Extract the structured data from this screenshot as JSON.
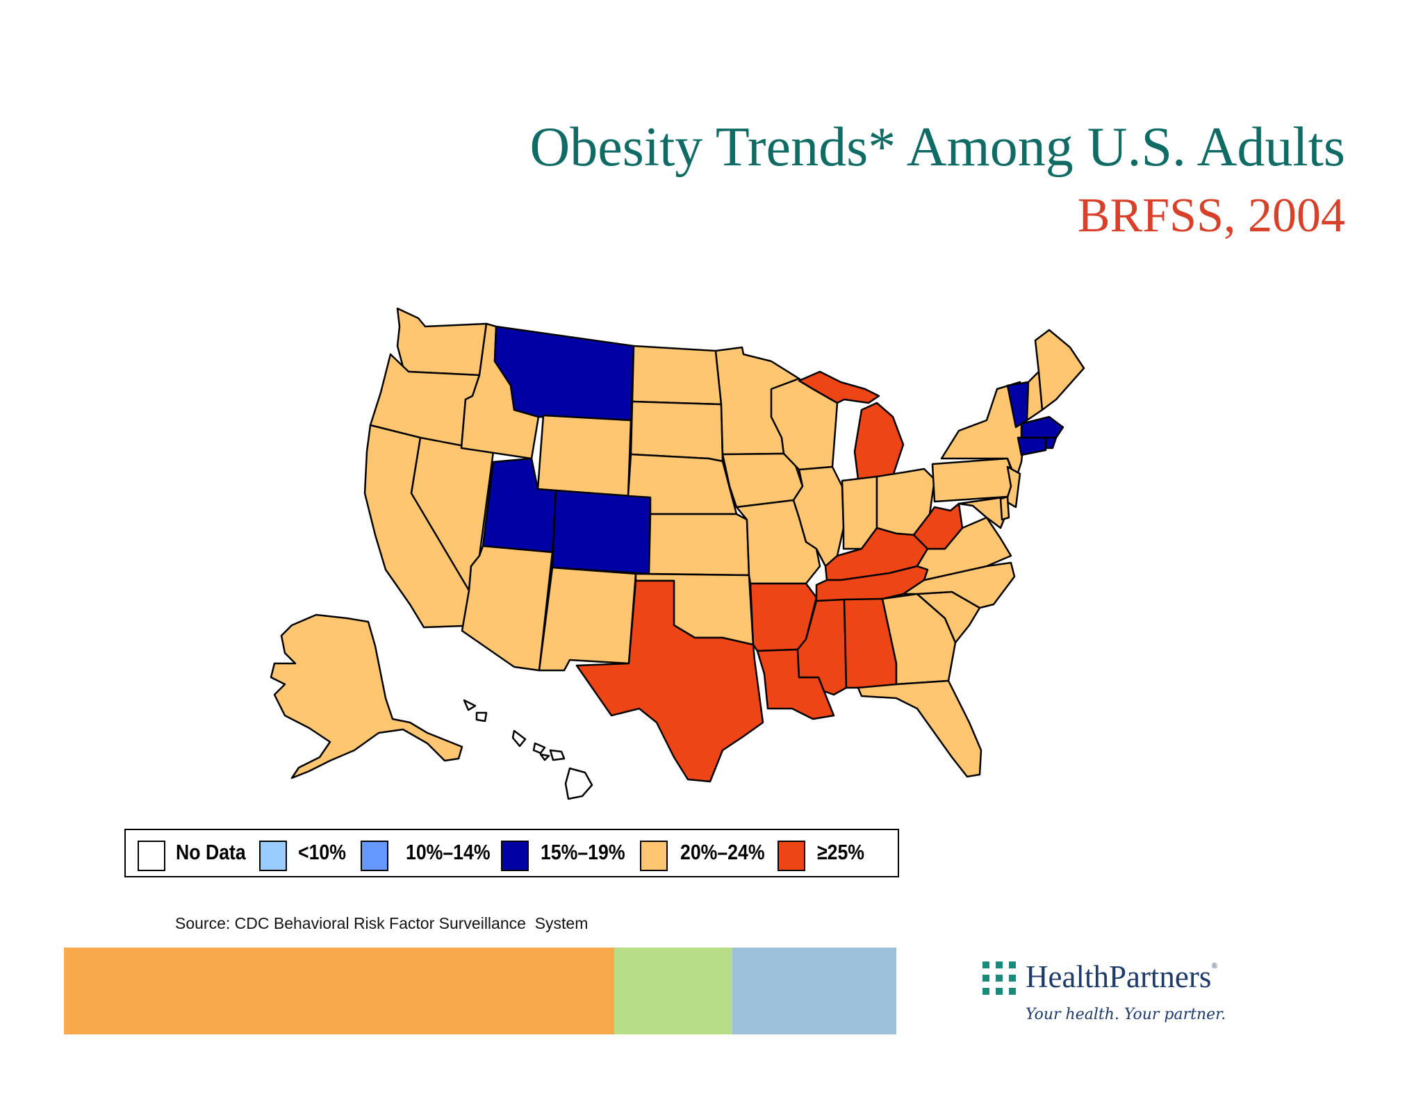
{
  "title": {
    "main": "Obesity Trends* Among U.S. Adults",
    "sub": "BRFSS, 2004"
  },
  "colors": {
    "title_main": "#0f6b64",
    "title_sub": "#d9402a",
    "no_data": "#ffffff",
    "lt10": "#99ccff",
    "p10_14": "#6699ff",
    "p15_19": "#0000a5",
    "p20_24": "#ffc672",
    "ge25": "#ee4517"
  },
  "legend": [
    {
      "key": "no_data",
      "label": "No Data"
    },
    {
      "key": "lt10",
      "label": "<10%"
    },
    {
      "key": "p10_14",
      "label": "10%–14%"
    },
    {
      "key": "p15_19",
      "label": "15%–19%"
    },
    {
      "key": "p20_24",
      "label": "20%–24%"
    },
    {
      "key": "ge25",
      "label": "≥25%"
    }
  ],
  "states": {
    "WA": "p20_24",
    "OR": "p20_24",
    "CA": "p20_24",
    "ID": "p20_24",
    "NV": "p20_24",
    "MT": "p15_19",
    "WY": "p20_24",
    "UT": "p15_19",
    "CO": "p15_19",
    "AZ": "p20_24",
    "NM": "p20_24",
    "ND": "p20_24",
    "SD": "p20_24",
    "NE": "p20_24",
    "KS": "p20_24",
    "OK": "p20_24",
    "TX": "ge25",
    "MN": "p20_24",
    "IA": "p20_24",
    "MO": "p20_24",
    "AR": "ge25",
    "LA": "ge25",
    "WI": "p20_24",
    "IL": "p20_24",
    "MI": "ge25",
    "IN": "p20_24",
    "OH": "p20_24",
    "KY": "ge25",
    "TN": "ge25",
    "MS": "ge25",
    "AL": "ge25",
    "GA": "p20_24",
    "FL": "p20_24",
    "SC": "p20_24",
    "NC": "p20_24",
    "VA": "p20_24",
    "WV": "ge25",
    "PA": "p20_24",
    "NY": "p20_24",
    "ME": "p20_24",
    "NH": "p20_24",
    "VT": "p15_19",
    "MA": "p15_19",
    "RI": "p15_19",
    "CT": "p15_19",
    "NJ": "p20_24",
    "DE": "p20_24",
    "MD": "p20_24",
    "AK": "p20_24",
    "HI": "no_data"
  },
  "source": "Source: CDC Behavioral Risk Factor Surveillance  System",
  "logo": {
    "name": "HealthPartners",
    "tagline": "Your health. Your partner."
  }
}
